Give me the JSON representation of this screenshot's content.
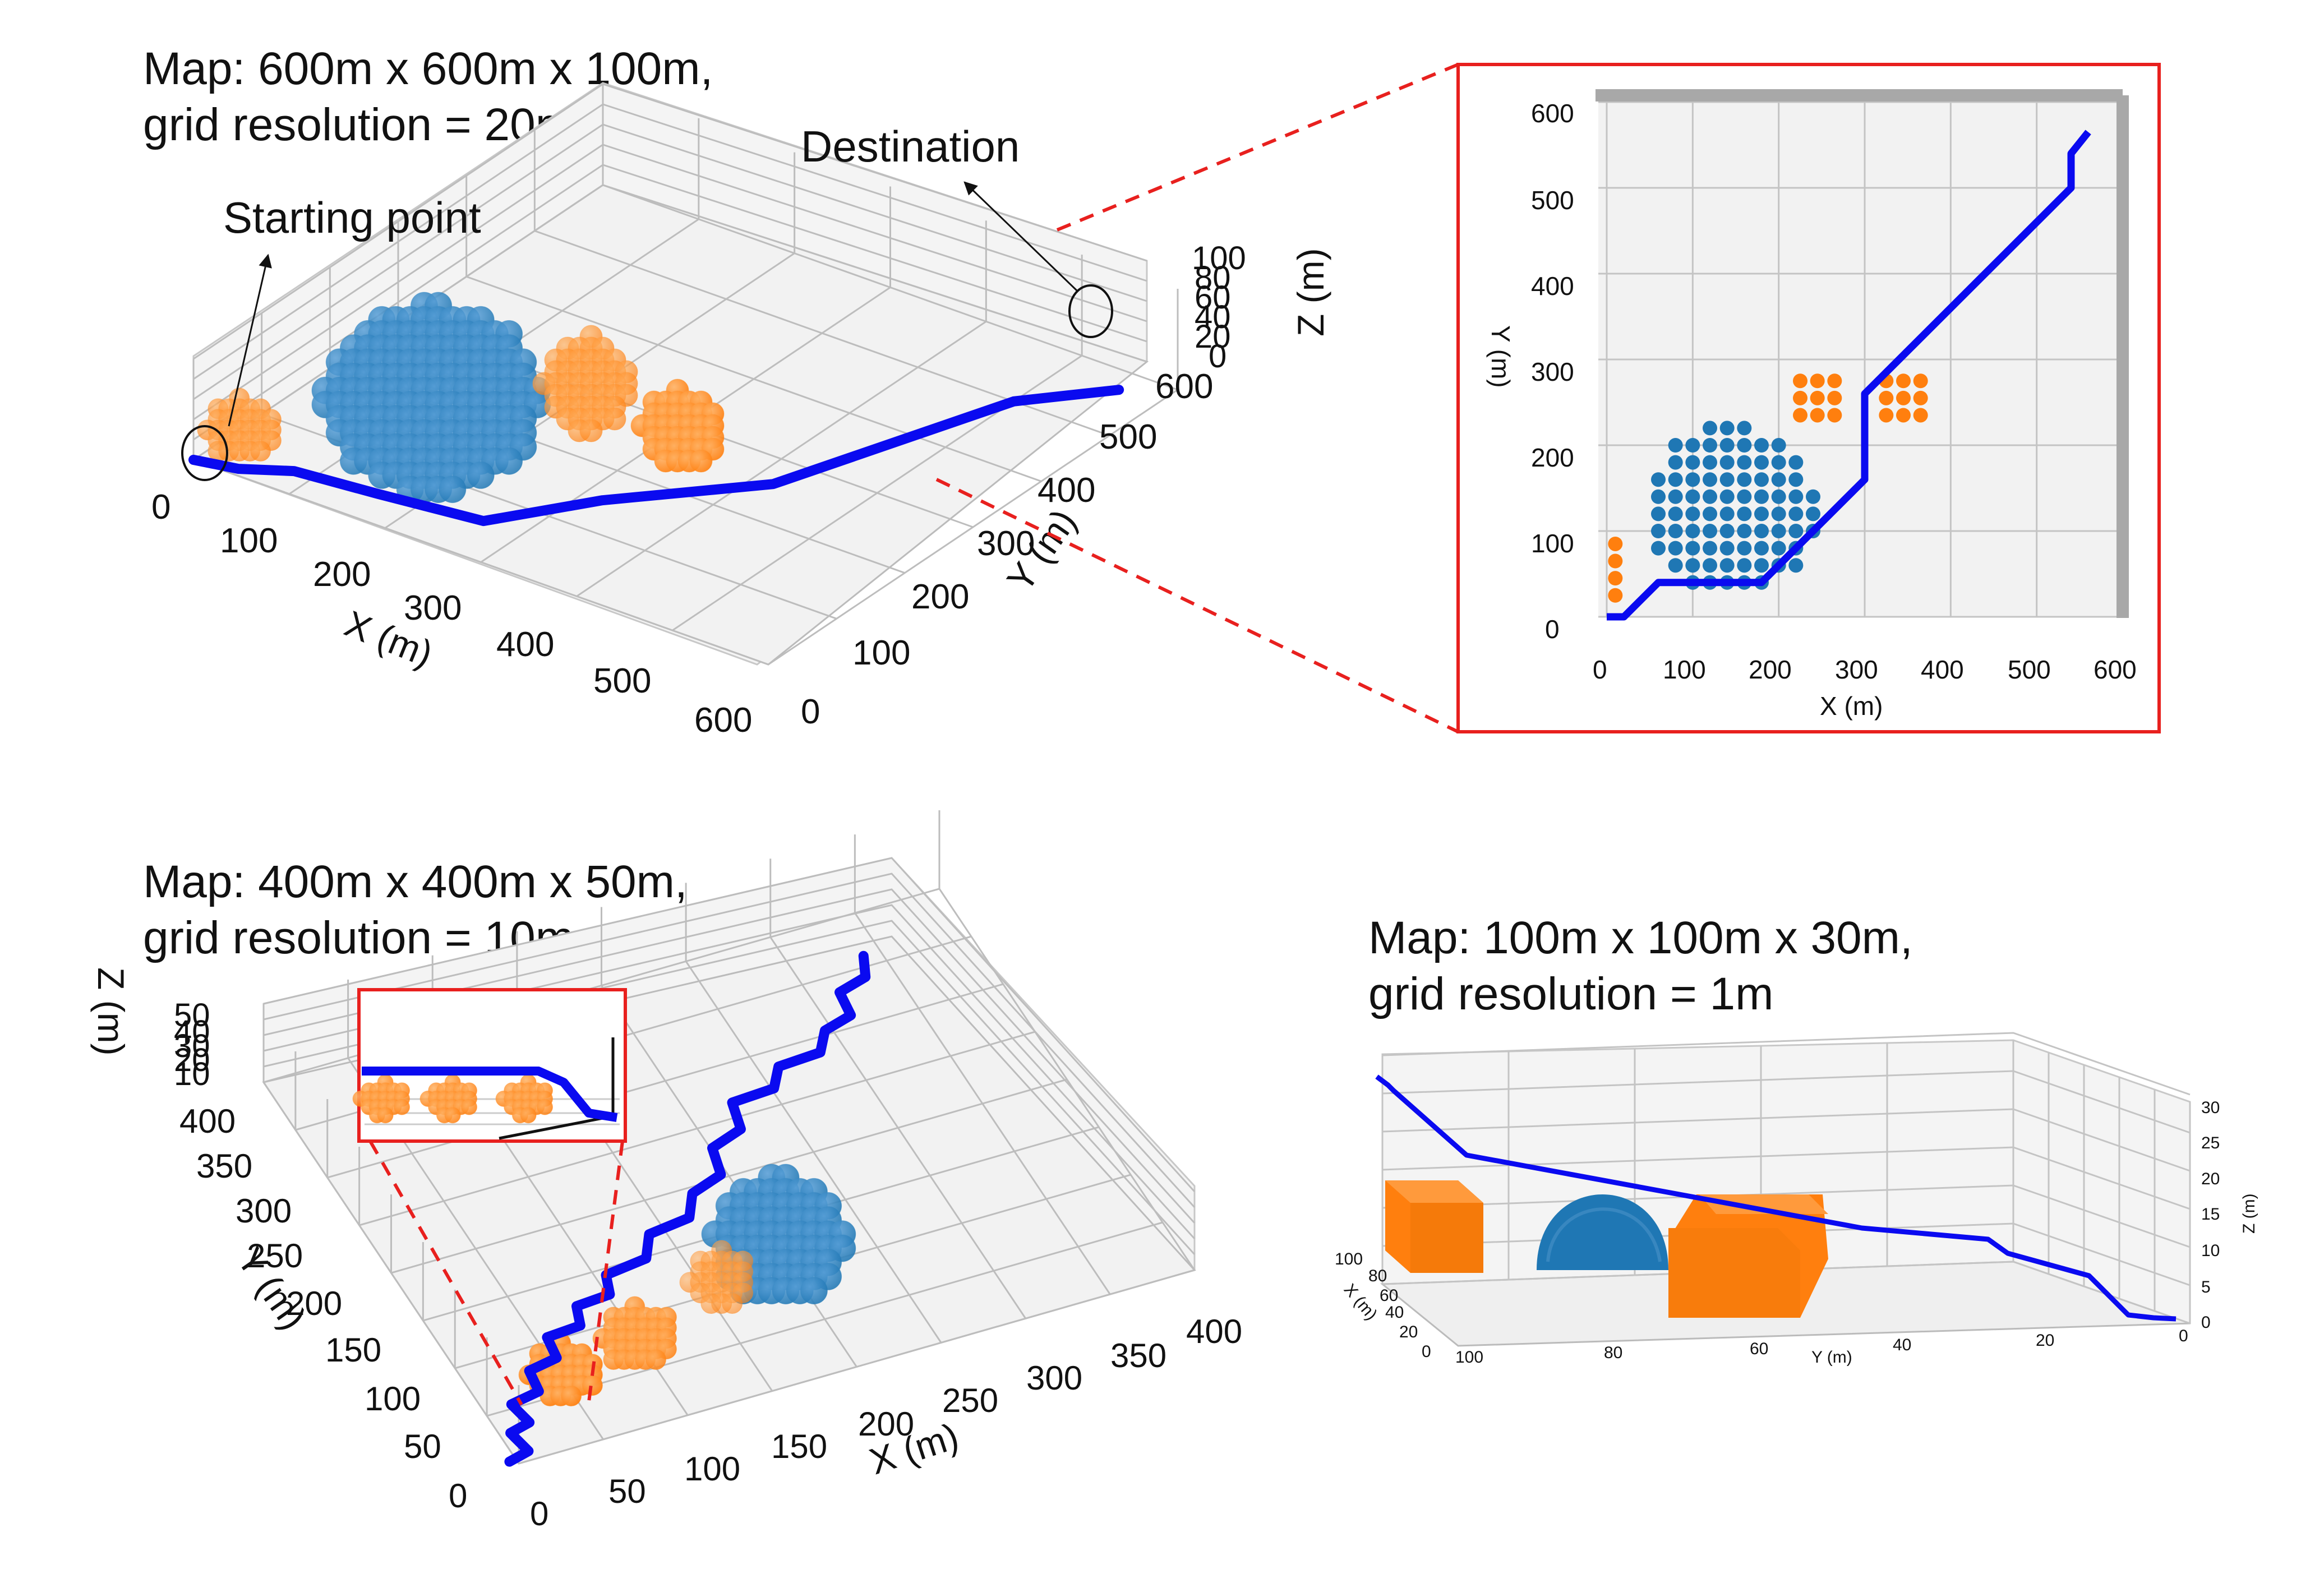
{
  "colors": {
    "path": "#0a0af0",
    "obstacle_sphere": "#1f77b4",
    "obstacle_box": "#ff7f0e",
    "highlight": "#e8201e",
    "grid": "#b8b8b8",
    "pane": "#f2f2f2"
  },
  "chart_data": [
    {
      "type": "scatter",
      "title": "Map: 600m x 600m x 100m,",
      "subtitle": "grid resolution = 20m",
      "xlabel": "X (m)",
      "ylabel": "Y (m)",
      "zlabel": "Z (m)",
      "xticks": [
        "0",
        "100",
        "200",
        "300",
        "400",
        "500",
        "600"
      ],
      "yticks": [
        "0",
        "100",
        "200",
        "300",
        "400",
        "500",
        "600"
      ],
      "zticks": [
        "0",
        "20",
        "40",
        "60",
        "80",
        "100"
      ],
      "annotations": [
        "Starting point",
        "Destination"
      ],
      "series": [
        {
          "points": [
            [
              0,
              0,
              0
            ],
            [
              40,
              10,
              0
            ],
            [
              80,
              35,
              0
            ],
            [
              160,
              45,
              0
            ],
            [
              260,
              60,
              0
            ],
            [
              320,
              150,
              0
            ],
            [
              420,
              260,
              0
            ],
            [
              500,
              500,
              0
            ],
            [
              560,
              570,
              0
            ]
          ]
        }
      ]
    },
    {
      "type": "scatter",
      "xlabel": "X (m)",
      "ylabel": "Y (m)",
      "xticks": [
        "0",
        "100",
        "200",
        "300",
        "400",
        "500",
        "600"
      ],
      "yticks": [
        "0",
        "100",
        "200",
        "300",
        "400",
        "500",
        "600"
      ],
      "xlim": [
        0,
        600
      ],
      "ylim": [
        0,
        600
      ],
      "series": [
        {
          "points": [
            [
              0,
              0
            ],
            [
              20,
              0
            ],
            [
              60,
              40
            ],
            [
              180,
              40
            ],
            [
              300,
              160
            ],
            [
              300,
              260
            ],
            [
              540,
              500
            ],
            [
              540,
              540
            ],
            [
              560,
              565
            ]
          ]
        }
      ],
      "obstacles": [
        {
          "kind": "sphere",
          "cx": 145,
          "cy": 125,
          "r": 105
        },
        {
          "kind": "box",
          "cx": 10,
          "cy": 55,
          "w": 20,
          "h": 80
        },
        {
          "kind": "box",
          "cx": 240,
          "cy": 250,
          "w": 50,
          "h": 50
        },
        {
          "kind": "box",
          "cx": 340,
          "cy": 250,
          "w": 50,
          "h": 50
        }
      ]
    },
    {
      "type": "scatter",
      "title": "Map: 400m x 400m x 50m,",
      "subtitle": "grid resolution = 10m",
      "xlabel": "X (m)",
      "ylabel": "Y (m)",
      "zlabel": "Z (m)",
      "xticks": [
        "0",
        "50",
        "100",
        "150",
        "200",
        "250",
        "300",
        "350",
        "400"
      ],
      "yticks": [
        "0",
        "50",
        "100",
        "150",
        "200",
        "250",
        "300",
        "350",
        "400"
      ],
      "zticks": [
        "10",
        "20",
        "30",
        "40",
        "50"
      ],
      "series": [
        {
          "points": [
            [
              0,
              0,
              0
            ],
            [
              20,
              50,
              0
            ],
            [
              60,
              100,
              0
            ],
            [
              110,
              140,
              0
            ],
            [
              180,
              190,
              0
            ],
            [
              230,
              260,
              0
            ],
            [
              300,
              300,
              0
            ],
            [
              340,
              360,
              0
            ]
          ]
        }
      ]
    },
    {
      "type": "scatter",
      "title": "Map: 100m x 100m x 30m,",
      "subtitle": "grid resolution = 1m",
      "xlabel": "X (m)",
      "ylabel": "Y (m)",
      "zlabel": "Z (m)",
      "xticks": [
        "0",
        "20",
        "40",
        "60",
        "80",
        "100"
      ],
      "yticks": [
        "100",
        "80",
        "60",
        "40",
        "20",
        "0"
      ],
      "zticks": [
        "0",
        "5",
        "10",
        "15",
        "20",
        "25",
        "30"
      ],
      "series": [
        {
          "points": [
            [
              0,
              100,
              30
            ],
            [
              0,
              98,
              29
            ],
            [
              0,
              80,
              20
            ],
            [
              0,
              40,
              12
            ],
            [
              0,
              20,
              11
            ],
            [
              0,
              10,
              6
            ],
            [
              0,
              2,
              1
            ],
            [
              0,
              0,
              1
            ]
          ]
        }
      ]
    }
  ]
}
